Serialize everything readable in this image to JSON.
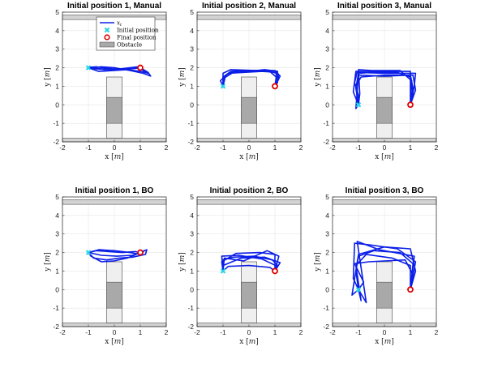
{
  "figure": {
    "colors": {
      "trajectory": "#0a1ee8",
      "initial_marker": "#22d3e6",
      "final_marker": "#e00000",
      "obstacle_light": "#efefef",
      "obstacle_dark": "#a9a9a9",
      "wall": "#d3d3d3",
      "grid": "#e6e6e6"
    },
    "legend": {
      "entries": [
        "x_t",
        "Initial position",
        "Final position",
        "Obstacle"
      ]
    }
  },
  "chart_data": [
    {
      "type": "line",
      "title": "Initial position 1, Manual",
      "xlabel": "x [m]",
      "ylabel": "y [m]",
      "xlim": [
        -2,
        2
      ],
      "ylim": [
        -2,
        5
      ],
      "xticks": [
        -2,
        -1,
        0,
        1,
        2
      ],
      "yticks": [
        -2,
        -1,
        0,
        1,
        2,
        3,
        4,
        5
      ],
      "grid": true,
      "legend_position": "top-center",
      "initial_position": [
        -1,
        2
      ],
      "final_position": [
        1,
        2
      ],
      "obstacle": {
        "x": [
          -0.3,
          0.3
        ],
        "y": [
          -1.8,
          1.5
        ],
        "dark_y": [
          -1.0,
          0.4
        ]
      },
      "walls": [
        {
          "y": [
            -2.0,
            -1.8
          ]
        },
        {
          "y": [
            4.6,
            4.85
          ]
        }
      ],
      "series": [
        {
          "x": [
            -1,
            -0.8,
            -0.4,
            0,
            0.4,
            0.8,
            1.0
          ],
          "y": [
            2.0,
            1.95,
            1.9,
            1.9,
            1.95,
            1.97,
            2.0
          ]
        },
        {
          "x": [
            -1,
            -0.7,
            -0.2,
            0.3,
            0.7,
            1.0
          ],
          "y": [
            2.02,
            2.05,
            1.95,
            1.9,
            1.95,
            2.0
          ]
        },
        {
          "x": [
            -1,
            -0.6,
            0,
            0.5,
            1.0,
            1.3,
            1.1,
            1.0
          ],
          "y": [
            2.0,
            1.8,
            1.85,
            1.9,
            1.8,
            1.7,
            1.85,
            2.0
          ]
        },
        {
          "x": [
            -1,
            -0.5,
            0,
            0.6,
            1.1,
            1.4,
            1.3,
            1.0
          ],
          "y": [
            1.98,
            2.05,
            2.0,
            1.85,
            1.7,
            1.55,
            1.75,
            2.0
          ]
        },
        {
          "x": [
            -1,
            -0.3,
            0.3,
            0.9,
            1.0
          ],
          "y": [
            2.0,
            1.92,
            1.95,
            2.05,
            2.0
          ]
        }
      ]
    },
    {
      "type": "line",
      "title": "Initial position 2, Manual",
      "xlabel": "x [m]",
      "ylabel": "y [m]",
      "xlim": [
        -2,
        2
      ],
      "ylim": [
        -2,
        5
      ],
      "xticks": [
        -2,
        -1,
        0,
        1,
        2
      ],
      "yticks": [
        -2,
        -1,
        0,
        1,
        2,
        3,
        4,
        5
      ],
      "grid": true,
      "initial_position": [
        -1,
        1
      ],
      "final_position": [
        1,
        1
      ],
      "obstacle": {
        "x": [
          -0.3,
          0.3
        ],
        "y": [
          -1.8,
          1.5
        ],
        "dark_y": [
          -1.0,
          0.4
        ]
      },
      "walls": [
        {
          "y": [
            -2.0,
            -1.8
          ]
        },
        {
          "y": [
            4.6,
            4.85
          ]
        }
      ],
      "series": [
        {
          "x": [
            -1,
            -1.0,
            -0.7,
            0,
            0.7,
            1.05,
            1.05,
            1.0
          ],
          "y": [
            1.0,
            1.5,
            1.8,
            1.85,
            1.85,
            1.7,
            1.3,
            1.0
          ]
        },
        {
          "x": [
            -1,
            -0.9,
            -0.5,
            0,
            0.6,
            1.1,
            1.1,
            1.0
          ],
          "y": [
            1.0,
            1.6,
            1.85,
            1.8,
            1.9,
            1.8,
            1.2,
            1.0
          ]
        },
        {
          "x": [
            -1,
            -1.1,
            -0.8,
            -0.2,
            0.5,
            1.1,
            1.15,
            1.0
          ],
          "y": [
            1.0,
            1.3,
            1.7,
            1.75,
            1.8,
            1.75,
            1.4,
            1.0
          ]
        },
        {
          "x": [
            -1,
            -0.95,
            -0.6,
            0.1,
            0.8,
            1.05,
            1.0
          ],
          "y": [
            1.0,
            1.45,
            1.75,
            1.8,
            1.8,
            1.5,
            1.0
          ]
        },
        {
          "x": [
            -1,
            -1.0,
            -0.7,
            0.3,
            1.0,
            1.2,
            1.0
          ],
          "y": [
            1.0,
            1.7,
            1.9,
            1.85,
            1.85,
            1.55,
            1.0
          ]
        }
      ]
    },
    {
      "type": "line",
      "title": "Initial position 3, Manual",
      "xlabel": "x [m]",
      "ylabel": "y [m]",
      "xlim": [
        -2,
        2
      ],
      "ylim": [
        -2,
        5
      ],
      "xticks": [
        -2,
        -1,
        0,
        1,
        2
      ],
      "yticks": [
        -2,
        -1,
        0,
        1,
        2,
        3,
        4,
        5
      ],
      "grid": true,
      "initial_position": [
        -1,
        0
      ],
      "final_position": [
        1,
        0
      ],
      "obstacle": {
        "x": [
          -0.3,
          0.3
        ],
        "y": [
          -1.8,
          1.5
        ],
        "dark_y": [
          -1.0,
          0.4
        ]
      },
      "walls": [
        {
          "y": [
            -2.0,
            -1.8
          ]
        },
        {
          "y": [
            4.6,
            4.85
          ]
        }
      ],
      "series": [
        {
          "x": [
            -1,
            -1.1,
            -1.0,
            -0.5,
            0.5,
            1.0,
            1.1,
            1.0
          ],
          "y": [
            0.0,
            0.9,
            1.7,
            1.75,
            1.75,
            1.5,
            0.6,
            0.0
          ]
        },
        {
          "x": [
            -1,
            -1.2,
            -1.1,
            -0.6,
            0.4,
            1.0,
            1.0
          ],
          "y": [
            0.0,
            0.7,
            1.8,
            1.8,
            1.8,
            1.8,
            0.0
          ]
        },
        {
          "x": [
            -1,
            -1.0,
            -1.15,
            -1.05,
            0,
            1.2,
            1.15,
            1.0
          ],
          "y": [
            0.0,
            0.5,
            1.2,
            1.75,
            1.7,
            1.7,
            1.0,
            0.0
          ]
        },
        {
          "x": [
            -1,
            -1.1,
            -0.9,
            0,
            1.1,
            1.2,
            1.0
          ],
          "y": [
            0.0,
            1.0,
            1.5,
            1.6,
            1.6,
            0.8,
            0.0
          ]
        },
        {
          "x": [
            -1,
            -0.95,
            -1.0,
            -0.5,
            0.6,
            1.05,
            1.0
          ],
          "y": [
            0.0,
            0.6,
            1.9,
            1.85,
            1.85,
            1.3,
            0.0
          ]
        },
        {
          "x": [
            -1,
            -1.1,
            -1.0,
            0,
            1.0,
            1.1,
            1.0
          ],
          "y": [
            0.0,
            -0.2,
            1.6,
            1.55,
            1.6,
            0.9,
            0.0
          ]
        }
      ]
    },
    {
      "type": "line",
      "title": "Initial position 1, BO",
      "xlabel": "x [m]",
      "ylabel": "y [m]",
      "xlim": [
        -2,
        2
      ],
      "ylim": [
        -2,
        5
      ],
      "xticks": [
        -2,
        -1,
        0,
        1,
        2
      ],
      "yticks": [
        -2,
        -1,
        0,
        1,
        2,
        3,
        4,
        5
      ],
      "grid": true,
      "initial_position": [
        -1,
        2
      ],
      "final_position": [
        1,
        2
      ],
      "obstacle": {
        "x": [
          -0.3,
          0.3
        ],
        "y": [
          -1.8,
          1.5
        ],
        "dark_y": [
          -1.0,
          0.4
        ]
      },
      "walls": [
        {
          "y": [
            -2.0,
            -1.8
          ]
        },
        {
          "y": [
            4.6,
            4.85
          ]
        }
      ],
      "series": [
        {
          "x": [
            -1,
            -0.7,
            -0.2,
            0.3,
            0.8,
            1.0
          ],
          "y": [
            2.0,
            2.1,
            2.05,
            2.0,
            2.05,
            2.0
          ]
        },
        {
          "x": [
            -1,
            -0.8,
            -0.3,
            0.2,
            0.7,
            1.2,
            1.25,
            1.0
          ],
          "y": [
            2.0,
            1.7,
            1.6,
            1.7,
            1.75,
            1.9,
            2.15,
            2.0
          ]
        },
        {
          "x": [
            -1,
            -0.9,
            -0.5,
            0,
            0.5,
            1.0
          ],
          "y": [
            2.0,
            1.8,
            1.5,
            1.55,
            1.7,
            2.0
          ]
        },
        {
          "x": [
            -1,
            -0.6,
            0,
            0.6,
            1.0,
            1.15,
            1.0
          ],
          "y": [
            2.0,
            2.15,
            2.1,
            2.0,
            1.9,
            2.1,
            2.0
          ]
        },
        {
          "x": [
            -1,
            -0.5,
            0.1,
            0.7,
            1.0
          ],
          "y": [
            2.0,
            1.85,
            1.8,
            1.85,
            2.0
          ]
        }
      ]
    },
    {
      "type": "line",
      "title": "Initial position 2, BO",
      "xlabel": "x [m]",
      "ylabel": "y [m]",
      "xlim": [
        -2,
        2
      ],
      "ylim": [
        -2,
        5
      ],
      "xticks": [
        -2,
        -1,
        0,
        1,
        2
      ],
      "yticks": [
        -2,
        -1,
        0,
        1,
        2,
        3,
        4,
        5
      ],
      "grid": true,
      "initial_position": [
        -1,
        1
      ],
      "final_position": [
        1,
        1
      ],
      "obstacle": {
        "x": [
          -0.3,
          0.3
        ],
        "y": [
          -1.8,
          1.5
        ],
        "dark_y": [
          -1.0,
          0.4
        ]
      },
      "walls": [
        {
          "y": [
            -2.0,
            -1.8
          ]
        },
        {
          "y": [
            4.6,
            4.85
          ]
        }
      ],
      "series": [
        {
          "x": [
            -1,
            -1.0,
            -0.6,
            0.2,
            0.9,
            1.1,
            1.0
          ],
          "y": [
            1.0,
            1.6,
            1.75,
            1.8,
            1.6,
            1.3,
            1.0
          ]
        },
        {
          "x": [
            -1,
            -1.05,
            -0.5,
            0.4,
            1.0,
            1.0
          ],
          "y": [
            1.0,
            1.5,
            1.95,
            2.0,
            1.9,
            1.0
          ]
        },
        {
          "x": [
            -1,
            -1.0,
            -0.3,
            0.6,
            1.2,
            1.0
          ],
          "y": [
            1.0,
            1.3,
            1.7,
            1.75,
            1.45,
            1.0
          ]
        },
        {
          "x": [
            -1,
            -0.95,
            -0.2,
            0.7,
            1.15,
            1.0
          ],
          "y": [
            1.0,
            1.7,
            1.55,
            2.1,
            1.8,
            1.0
          ]
        },
        {
          "x": [
            -1,
            -0.8,
            0,
            0.8,
            1.0
          ],
          "y": [
            1.0,
            1.25,
            1.3,
            1.2,
            1.0
          ]
        },
        {
          "x": [
            -1,
            -1.05,
            -0.4,
            0.5,
            1.1,
            1.0
          ],
          "y": [
            1.0,
            1.8,
            1.85,
            1.65,
            1.25,
            1.0
          ]
        }
      ]
    },
    {
      "type": "line",
      "title": "Initial position 3, BO",
      "xlabel": "x [m]",
      "ylabel": "y [m]",
      "xlim": [
        -2,
        2
      ],
      "ylim": [
        -2,
        5
      ],
      "xticks": [
        -2,
        -1,
        0,
        1,
        2
      ],
      "yticks": [
        -2,
        -1,
        0,
        1,
        2,
        3,
        4,
        5
      ],
      "grid": true,
      "initial_position": [
        -1,
        0
      ],
      "final_position": [
        1,
        0
      ],
      "obstacle": {
        "x": [
          -0.3,
          0.3
        ],
        "y": [
          -1.8,
          1.5
        ],
        "dark_y": [
          -1.0,
          0.4
        ]
      },
      "walls": [
        {
          "y": [
            -2.0,
            -1.8
          ]
        },
        {
          "y": [
            4.6,
            4.85
          ]
        }
      ],
      "series": [
        {
          "x": [
            -1,
            -1.1,
            -1.0,
            -0.4,
            0.6,
            1.1,
            1.0
          ],
          "y": [
            0.0,
            1.0,
            1.8,
            2.1,
            2.0,
            1.4,
            0.0
          ]
        },
        {
          "x": [
            -1,
            -1.2,
            -1.15,
            -0.5,
            0.5,
            1.2,
            1.0
          ],
          "y": [
            0.0,
            0.6,
            2.5,
            2.4,
            2.2,
            1.5,
            0.0
          ]
        },
        {
          "x": [
            -1,
            -0.9,
            -1.1,
            -0.7,
            0.3,
            1.0,
            1.0
          ],
          "y": [
            0.0,
            -0.6,
            1.3,
            1.9,
            1.7,
            1.3,
            0.0
          ]
        },
        {
          "x": [
            -1,
            -1.25,
            -1.0,
            0,
            1.0,
            1.2,
            1.0
          ],
          "y": [
            0.0,
            -0.3,
            1.9,
            2.3,
            2.2,
            1.0,
            0.0
          ]
        },
        {
          "x": [
            -1,
            -0.8,
            -1.15,
            -0.6,
            0.8,
            1.1,
            1.0
          ],
          "y": [
            0.0,
            0.4,
            1.4,
            1.5,
            1.6,
            0.8,
            0.0
          ]
        },
        {
          "x": [
            -1,
            -0.7,
            -1.05,
            -0.2,
            1.15,
            1.0
          ],
          "y": [
            0.0,
            -0.7,
            2.6,
            2.15,
            1.8,
            0.0
          ]
        }
      ]
    }
  ]
}
